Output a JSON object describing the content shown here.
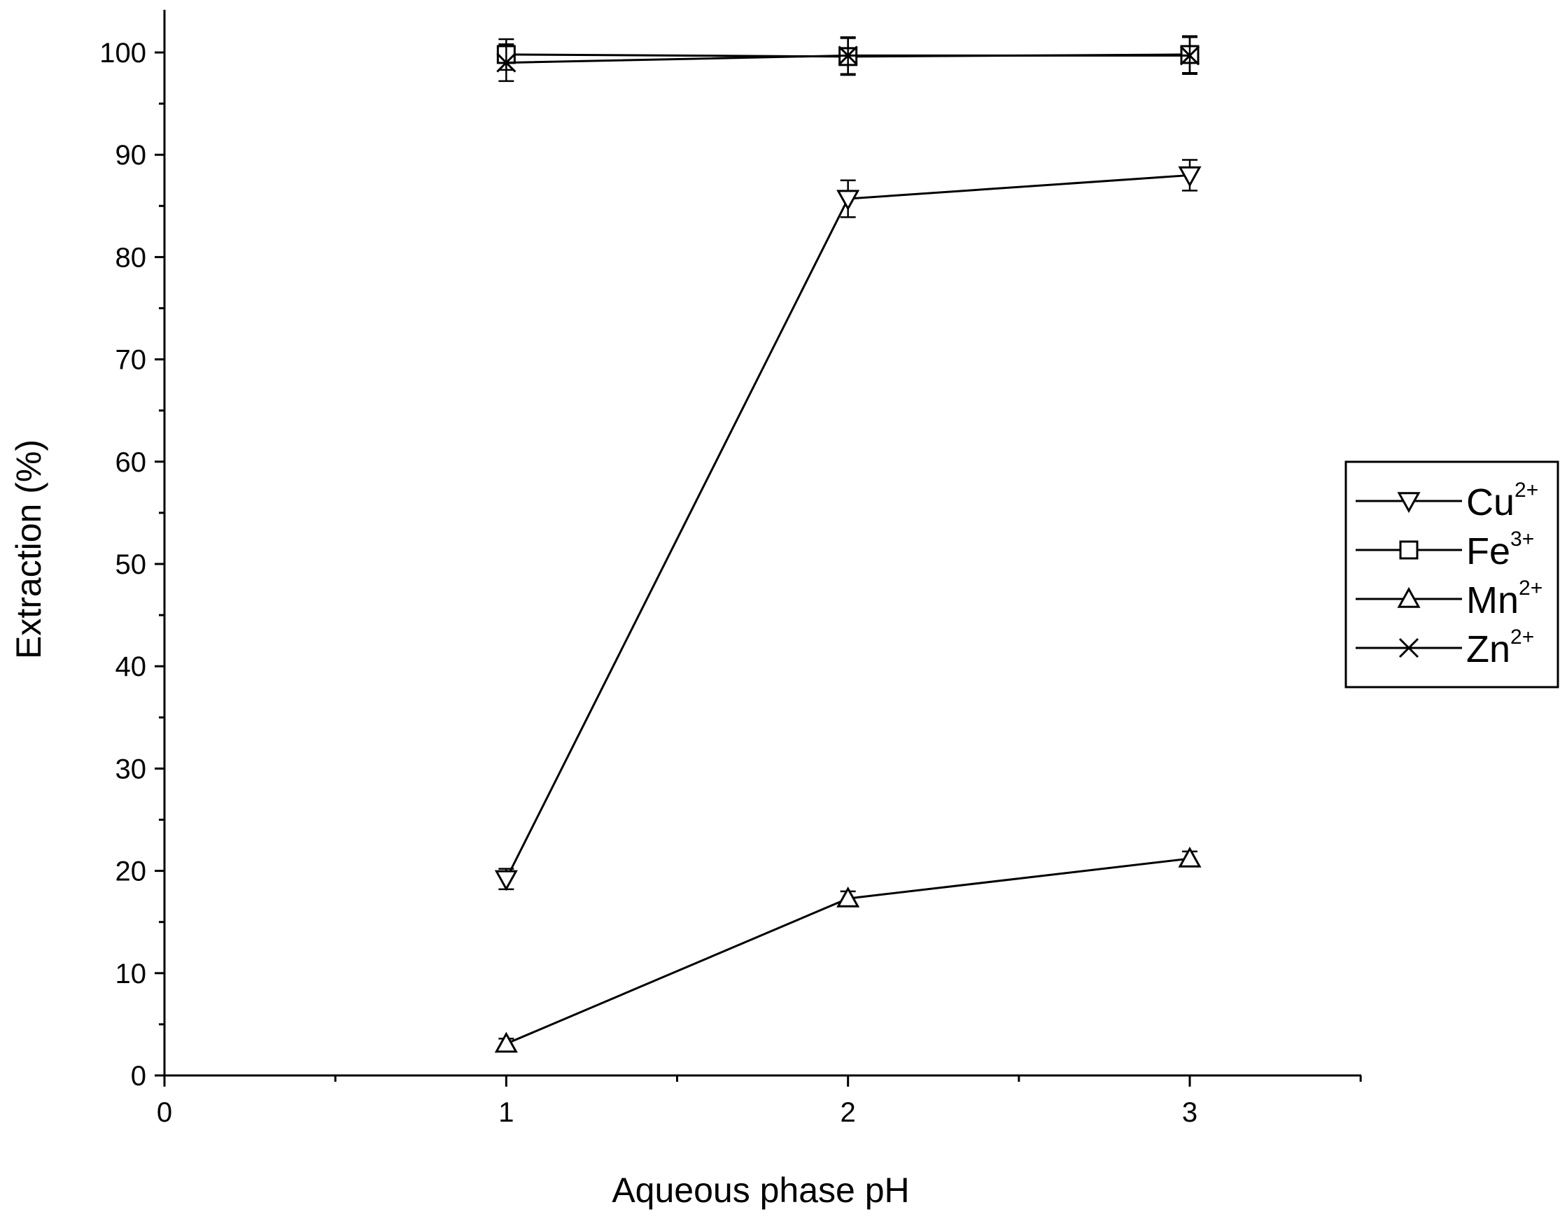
{
  "chart_data": {
    "type": "line",
    "xlabel": "Aqueous phase pH",
    "ylabel": "Extraction (%)",
    "xlim": [
      0,
      3.5
    ],
    "ylim": [
      0,
      104
    ],
    "xticks": [
      "0",
      "1",
      "2",
      "3"
    ],
    "yticks": [
      "0",
      "10",
      "20",
      "30",
      "40",
      "50",
      "60",
      "70",
      "80",
      "90",
      "100"
    ],
    "x": [
      1,
      2,
      3
    ],
    "series": [
      {
        "name": "Cu",
        "ion_charge": "2+",
        "marker": "triangle-down",
        "values": [
          19.2,
          85.7,
          88.0
        ],
        "error": [
          1.0,
          1.8,
          1.5
        ]
      },
      {
        "name": "Fe",
        "ion_charge": "3+",
        "marker": "square",
        "values": [
          99.8,
          99.6,
          99.8
        ],
        "error": [
          1.5,
          1.8,
          1.8
        ]
      },
      {
        "name": "Mn",
        "ion_charge": "2+",
        "marker": "triangle-up",
        "values": [
          3.1,
          17.3,
          21.2
        ],
        "error": [
          0.5,
          0.7,
          0.7
        ]
      },
      {
        "name": "Zn",
        "ion_charge": "2+",
        "marker": "cross",
        "values": [
          99.0,
          99.7,
          99.7
        ],
        "error": [
          1.8,
          1.8,
          1.8
        ]
      }
    ],
    "legend_position": "right",
    "grid": false,
    "line_color": "#000000"
  }
}
